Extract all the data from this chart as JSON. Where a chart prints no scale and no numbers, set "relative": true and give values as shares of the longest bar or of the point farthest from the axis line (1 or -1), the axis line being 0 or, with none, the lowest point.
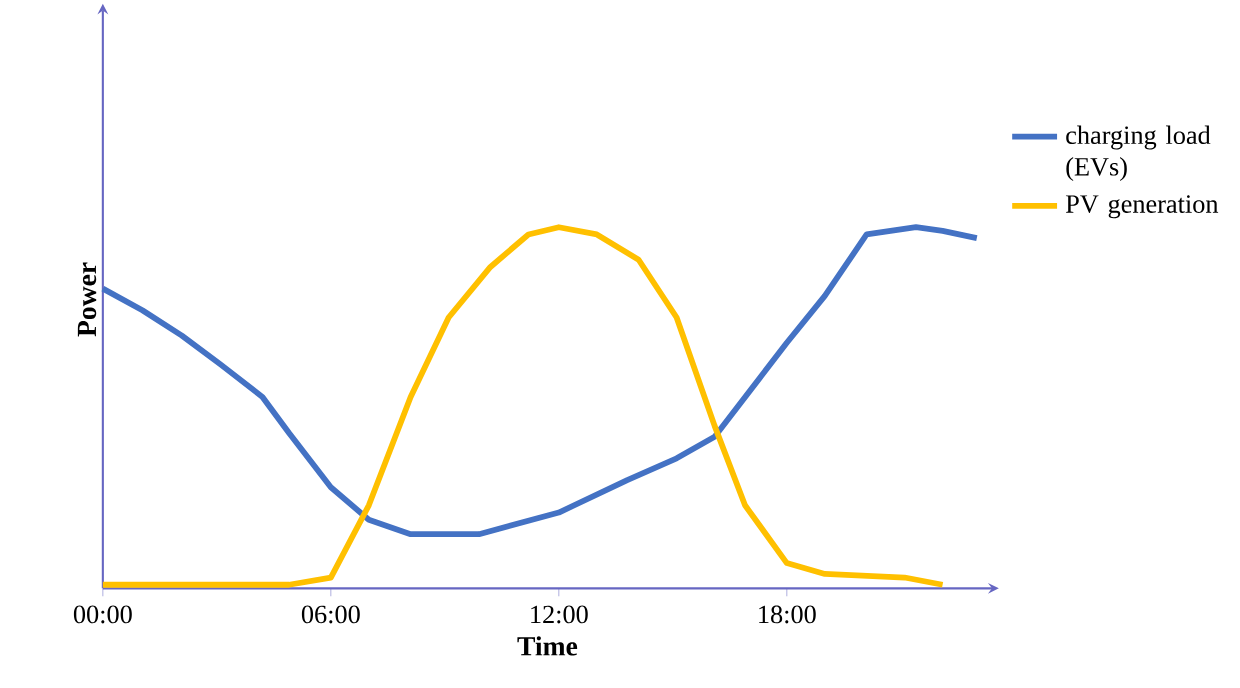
{
  "chart_data": {
    "type": "line",
    "xlabel": "Time",
    "ylabel": "Power",
    "relative": true,
    "xlim": [
      0,
      23.4
    ],
    "xticks": [
      {
        "value": 0,
        "label": "00:00"
      },
      {
        "value": 6,
        "label": "06:00"
      },
      {
        "value": 12,
        "label": "12:00"
      },
      {
        "value": 18,
        "label": "18:00"
      }
    ],
    "legend": "right",
    "grid": false,
    "marker": "none",
    "line_style": "solid",
    "series": [
      {
        "name": "charging load (EVs)",
        "color": "#4472c4",
        "x": [
          0,
          1.04,
          2.08,
          3.1,
          4.2,
          4.9,
          6,
          7,
          8.1,
          9.9,
          12,
          13.8,
          15.1,
          16.1,
          18,
          19,
          20.1,
          21.4,
          22.1,
          23
        ],
        "values": [
          0.83,
          0.77,
          0.7,
          0.62,
          0.53,
          0.43,
          0.28,
          0.19,
          0.15,
          0.15,
          0.21,
          0.3,
          0.36,
          0.42,
          0.68,
          0.81,
          0.98,
          1.0,
          0.99,
          0.97
        ]
      },
      {
        "name": "PV generation",
        "color": "#ffc000",
        "x": [
          0,
          4.9,
          6,
          7,
          8.1,
          9.1,
          10.2,
          11.2,
          12,
          13,
          14.1,
          15.1,
          16.1,
          16.9,
          18,
          19,
          21.1,
          22.1
        ],
        "values": [
          0.01,
          0.01,
          0.03,
          0.23,
          0.53,
          0.75,
          0.89,
          0.98,
          1.0,
          0.98,
          0.91,
          0.75,
          0.45,
          0.23,
          0.07,
          0.04,
          0.03,
          0.01
        ]
      }
    ]
  }
}
